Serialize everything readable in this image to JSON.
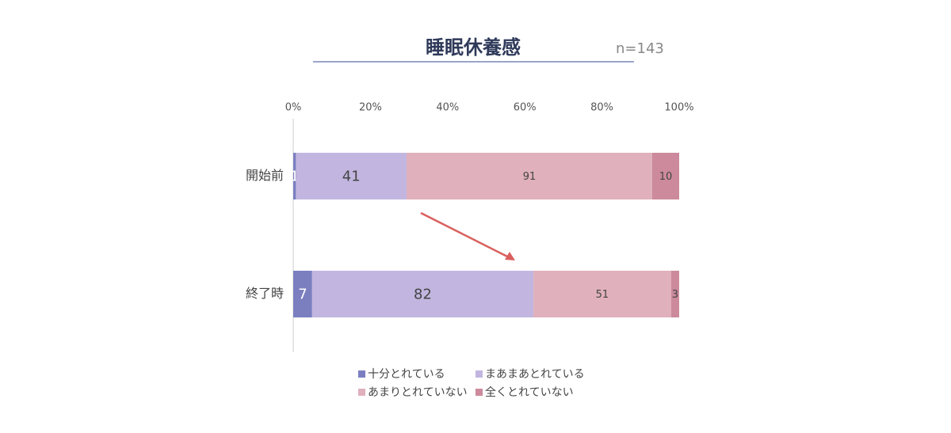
{
  "chart_data": {
    "type": "stacked-bar-100",
    "title": "睡眠休養感",
    "subtitle": "n=143",
    "categories": [
      "開始前",
      "終了時"
    ],
    "series": [
      {
        "name": "十分とれている",
        "color": "#7b7fc0",
        "values": [
          1,
          7
        ]
      },
      {
        "name": "まあまあとれている",
        "color": "#c2b6e0",
        "values": [
          41,
          82
        ]
      },
      {
        "name": "あまりとれていない",
        "color": "#e0b0bc",
        "values": [
          91,
          51
        ]
      },
      {
        "name": "全くとれていない",
        "color": "#cc8a9c",
        "values": [
          10,
          3
        ]
      }
    ],
    "xlim": [
      0,
      100
    ],
    "xticks": [
      {
        "value": 0,
        "label": "0%"
      },
      {
        "value": 20,
        "label": "20%"
      },
      {
        "value": 40,
        "label": "40%"
      },
      {
        "value": 60,
        "label": "60%"
      },
      {
        "value": 80,
        "label": "80%"
      },
      {
        "value": 100,
        "label": "100%"
      }
    ]
  }
}
